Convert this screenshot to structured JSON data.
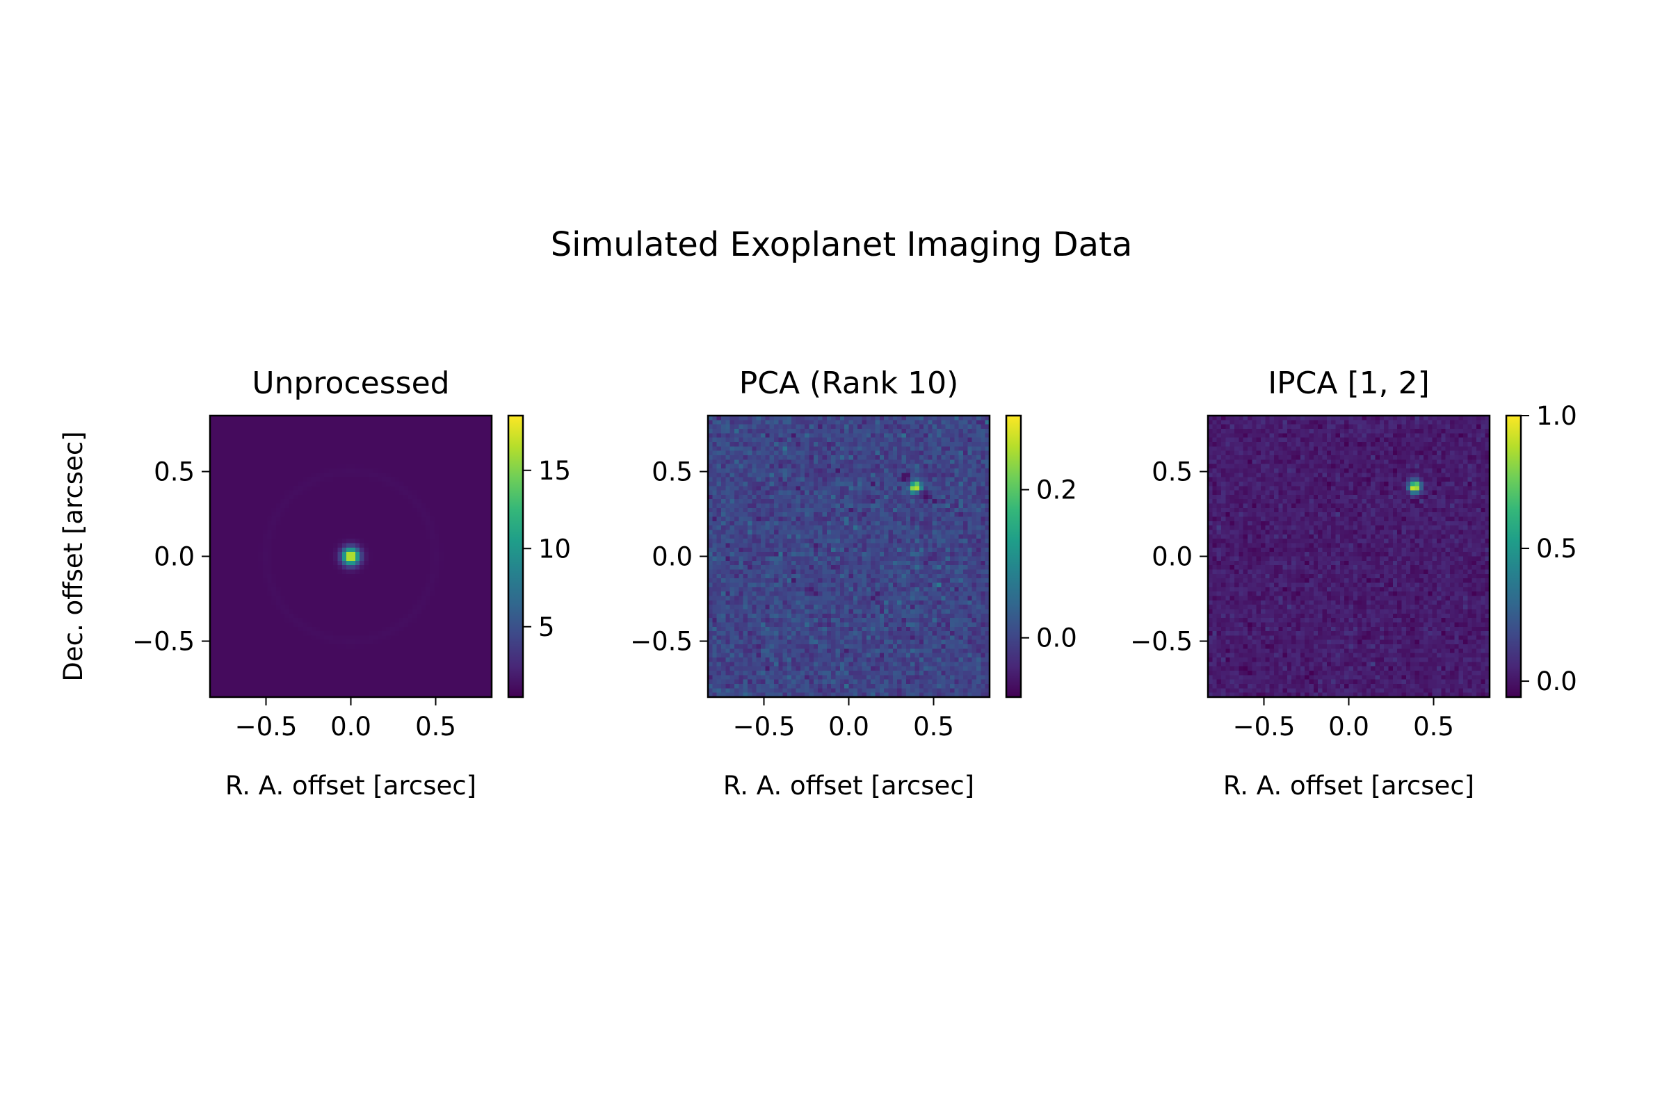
{
  "figure": {
    "title": "Simulated Exoplanet Imaging Data"
  },
  "colors": {
    "colormap": "viridis",
    "viridis_stops": [
      "#440154",
      "#482878",
      "#3e4989",
      "#31688e",
      "#26828e",
      "#1f9e89",
      "#35b779",
      "#6ece58",
      "#b5de2b",
      "#fde725"
    ],
    "axis_color": "#000000",
    "background": "#ffffff"
  },
  "chart_data": [
    {
      "type": "heatmap",
      "title": "Unprocessed",
      "xlabel": "R. A. offset [arcsec]",
      "ylabel": "Dec. offset [arcsec]",
      "xlim": [
        -0.83,
        0.83
      ],
      "ylim": [
        -0.83,
        0.83
      ],
      "xticks": [
        -0.5,
        0.0,
        0.5
      ],
      "xtick_labels": [
        "−0.5",
        "0.0",
        "0.5"
      ],
      "yticks": [
        -0.5,
        0.0,
        0.5
      ],
      "ytick_labels": [
        "−0.5",
        "0.0",
        "0.5"
      ],
      "colorbar": {
        "min": 0.5,
        "max": 18.5,
        "ticks": [
          5,
          10,
          15
        ],
        "tick_labels": [
          "5",
          "10",
          "15"
        ]
      },
      "image": {
        "background": 1.0,
        "noise": 0.0,
        "sources": [
          {
            "x": 0.0,
            "y": 0.0,
            "amplitude": 17.5,
            "sigma": 0.035,
            "kind": "gaussian"
          }
        ],
        "rings": [
          {
            "radius": 0.5,
            "amplitude": 0.15,
            "width": 0.02
          }
        ]
      }
    },
    {
      "type": "heatmap",
      "title": "PCA (Rank 10)",
      "xlabel": "R. A. offset [arcsec]",
      "ylabel": "",
      "xlim": [
        -0.83,
        0.83
      ],
      "ylim": [
        -0.83,
        0.83
      ],
      "xticks": [
        -0.5,
        0.0,
        0.5
      ],
      "xtick_labels": [
        "−0.5",
        "0.0",
        "0.5"
      ],
      "yticks": [
        -0.5,
        0.0,
        0.5
      ],
      "ytick_labels": [
        "−0.5",
        "0.0",
        "0.5"
      ],
      "colorbar": {
        "min": -0.08,
        "max": 0.3,
        "ticks": [
          0.0,
          0.2
        ],
        "tick_labels": [
          "0.0",
          "0.2"
        ]
      },
      "image": {
        "background": 0.0,
        "noise": 0.018,
        "sources": [
          {
            "x": 0.39,
            "y": 0.41,
            "amplitude": 0.3,
            "sigma": 0.022,
            "kind": "gaussian"
          },
          {
            "x": 0.33,
            "y": 0.46,
            "amplitude": -0.08,
            "sigma": 0.022,
            "kind": "gaussian"
          },
          {
            "x": 0.44,
            "y": 0.36,
            "amplitude": -0.08,
            "sigma": 0.022,
            "kind": "gaussian"
          }
        ],
        "rings": []
      }
    },
    {
      "type": "heatmap",
      "title": "IPCA [1, 2]",
      "xlabel": "R. A. offset [arcsec]",
      "ylabel": "",
      "xlim": [
        -0.83,
        0.83
      ],
      "ylim": [
        -0.83,
        0.83
      ],
      "xticks": [
        -0.5,
        0.0,
        0.5
      ],
      "xtick_labels": [
        "−0.5",
        "0.0",
        "0.5"
      ],
      "yticks": [
        -0.5,
        0.0,
        0.5
      ],
      "ytick_labels": [
        "−0.5",
        "0.0",
        "0.5"
      ],
      "colorbar": {
        "min": -0.06,
        "max": 1.0,
        "ticks": [
          0.0,
          0.5,
          1.0
        ],
        "tick_labels": [
          "0.0",
          "0.5",
          "1.0"
        ]
      },
      "image": {
        "background": 0.02,
        "noise": 0.03,
        "sources": [
          {
            "x": 0.39,
            "y": 0.41,
            "amplitude": 1.0,
            "sigma": 0.024,
            "kind": "gaussian"
          }
        ],
        "rings": []
      }
    }
  ]
}
